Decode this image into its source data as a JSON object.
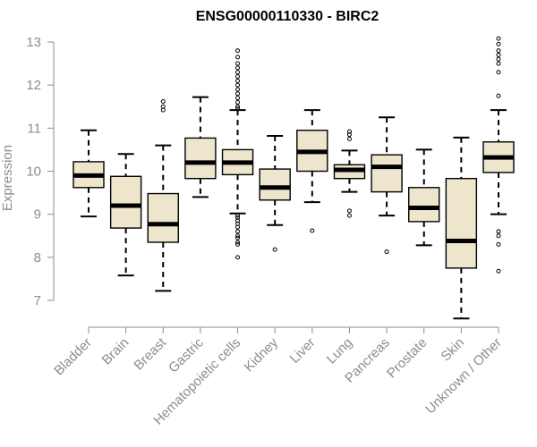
{
  "chart_data": {
    "type": "boxplot",
    "title": "ENSG00000110330 - BIRC2",
    "xlabel": "",
    "ylabel": "Expression",
    "ylim": [
      7,
      13
    ],
    "yticks": [
      7,
      8,
      9,
      10,
      11,
      12,
      13
    ],
    "box_fill": "#ede6cd",
    "series": [
      {
        "name": "Bladder",
        "min": 8.95,
        "q1": 9.62,
        "median": 9.9,
        "q3": 10.22,
        "max": 10.95,
        "outliers": []
      },
      {
        "name": "Brain",
        "min": 7.58,
        "q1": 8.68,
        "median": 9.2,
        "q3": 9.88,
        "max": 10.4,
        "outliers": []
      },
      {
        "name": "Breast",
        "min": 7.22,
        "q1": 8.35,
        "median": 8.77,
        "q3": 9.48,
        "max": 10.6,
        "outliers": [
          11.42,
          11.5,
          11.62
        ]
      },
      {
        "name": "Gastric",
        "min": 9.4,
        "q1": 9.83,
        "median": 10.2,
        "q3": 10.77,
        "max": 11.72,
        "outliers": []
      },
      {
        "name": "Hematopoietic cells",
        "min": 9.02,
        "q1": 9.92,
        "median": 10.2,
        "q3": 10.5,
        "max": 11.42,
        "outliers": [
          8.0,
          8.3,
          8.35,
          8.45,
          8.5,
          8.6,
          8.7,
          8.78,
          8.85,
          8.92,
          8.97,
          11.45,
          11.5,
          11.6,
          11.7,
          11.8,
          11.9,
          12.0,
          12.1,
          12.2,
          12.3,
          12.4,
          12.5,
          12.65,
          12.8
        ]
      },
      {
        "name": "Kidney",
        "min": 8.75,
        "q1": 9.33,
        "median": 9.62,
        "q3": 10.05,
        "max": 10.82,
        "outliers": [
          8.18
        ]
      },
      {
        "name": "Liver",
        "min": 9.28,
        "q1": 10.0,
        "median": 10.45,
        "q3": 10.95,
        "max": 11.42,
        "outliers": [
          8.62
        ]
      },
      {
        "name": "Lung",
        "min": 9.52,
        "q1": 9.83,
        "median": 10.03,
        "q3": 10.15,
        "max": 10.48,
        "outliers": [
          8.97,
          9.08,
          10.75,
          10.85,
          10.92
        ]
      },
      {
        "name": "Pancreas",
        "min": 8.97,
        "q1": 9.52,
        "median": 10.1,
        "q3": 10.38,
        "max": 11.25,
        "outliers": [
          8.13
        ]
      },
      {
        "name": "Prostate",
        "min": 8.28,
        "q1": 8.83,
        "median": 9.15,
        "q3": 9.62,
        "max": 10.5,
        "outliers": []
      },
      {
        "name": "Skin",
        "min": 6.58,
        "q1": 7.75,
        "median": 8.38,
        "q3": 9.83,
        "max": 10.78,
        "outliers": []
      },
      {
        "name": "Unknown / Other",
        "min": 9.0,
        "q1": 9.97,
        "median": 10.32,
        "q3": 10.68,
        "max": 11.42,
        "outliers": [
          7.68,
          8.3,
          8.5,
          8.6,
          11.75,
          12.3,
          12.5,
          12.6,
          12.7,
          12.8,
          12.95,
          13.08
        ]
      }
    ]
  }
}
